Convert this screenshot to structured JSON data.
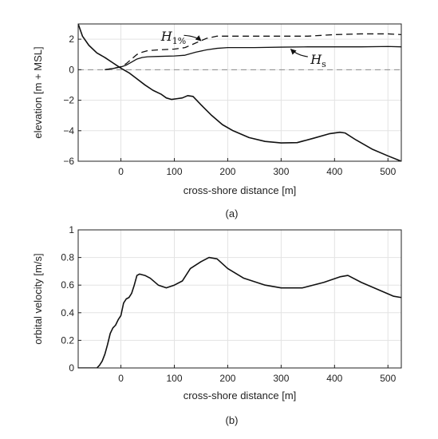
{
  "chart_data": [
    {
      "type": "line",
      "panel_label": "(a)",
      "xlabel": "cross-shore distance [m]",
      "ylabel": "elevation [m + MSL]",
      "xlim": [
        -80,
        525
      ],
      "ylim": [
        -6,
        3
      ],
      "xticks": [
        0,
        100,
        200,
        300,
        400,
        500
      ],
      "yticks": [
        -6,
        -4,
        -2,
        0,
        2
      ],
      "grid": true,
      "series": [
        {
          "name": "bed",
          "style": "solid",
          "x": [
            -80,
            -72,
            -60,
            -45,
            -30,
            -15,
            0,
            15,
            30,
            45,
            60,
            75,
            85,
            95,
            105,
            115,
            125,
            135,
            150,
            170,
            190,
            210,
            240,
            270,
            300,
            330,
            360,
            390,
            410,
            420,
            440,
            470,
            500,
            525
          ],
          "y": [
            3.0,
            2.2,
            1.6,
            1.1,
            0.8,
            0.45,
            0.1,
            -0.2,
            -0.6,
            -1.0,
            -1.35,
            -1.6,
            -1.85,
            -1.95,
            -1.9,
            -1.85,
            -1.7,
            -1.75,
            -2.3,
            -3.0,
            -3.6,
            -4.0,
            -4.45,
            -4.7,
            -4.8,
            -4.78,
            -4.5,
            -4.2,
            -4.1,
            -4.15,
            -4.6,
            -5.2,
            -5.65,
            -6.0
          ]
        },
        {
          "name": "MSL",
          "style": "dashed",
          "x": [
            -80,
            525
          ],
          "y": [
            0,
            0
          ]
        },
        {
          "name": "H_s",
          "style": "solid",
          "x": [
            -30,
            -15,
            0,
            10,
            20,
            30,
            40,
            50,
            70,
            100,
            120,
            140,
            160,
            180,
            200,
            250,
            300,
            350,
            400,
            450,
            500,
            525
          ],
          "y": [
            0.0,
            0.08,
            0.18,
            0.3,
            0.5,
            0.7,
            0.8,
            0.85,
            0.87,
            0.9,
            0.95,
            1.15,
            1.3,
            1.4,
            1.45,
            1.45,
            1.48,
            1.5,
            1.5,
            1.5,
            1.52,
            1.5
          ]
        },
        {
          "name": "H_1%",
          "style": "dashed",
          "x": [
            -30,
            -15,
            0,
            10,
            20,
            30,
            40,
            50,
            70,
            100,
            120,
            140,
            160,
            180,
            200,
            250,
            300,
            350,
            400,
            450,
            500,
            525
          ],
          "y": [
            0.0,
            0.08,
            0.2,
            0.4,
            0.7,
            1.0,
            1.15,
            1.25,
            1.3,
            1.35,
            1.45,
            1.75,
            2.05,
            2.2,
            2.2,
            2.2,
            2.2,
            2.2,
            2.3,
            2.35,
            2.35,
            2.3
          ]
        }
      ],
      "annotations": [
        {
          "base": "H",
          "sub": "1%",
          "at": [
            75,
            2.15
          ]
        },
        {
          "base": "H",
          "sub": "s",
          "at": [
            355,
            0.65
          ]
        }
      ]
    },
    {
      "type": "line",
      "panel_label": "(b)",
      "xlabel": "cross-shore distance [m]",
      "ylabel": "orbital velocity [m/s]",
      "xlim": [
        -80,
        525
      ],
      "ylim": [
        0,
        1
      ],
      "xticks": [
        0,
        100,
        200,
        300,
        400,
        500
      ],
      "yticks": [
        0,
        0.2,
        0.4,
        0.6,
        0.8,
        1
      ],
      "grid": true,
      "series": [
        {
          "name": "orbital velocity",
          "style": "solid",
          "x": [
            -80,
            -45,
            -40,
            -35,
            -30,
            -25,
            -20,
            -15,
            -10,
            -5,
            0,
            5,
            10,
            15,
            20,
            25,
            30,
            35,
            45,
            55,
            70,
            85,
            100,
            115,
            130,
            150,
            165,
            180,
            200,
            230,
            270,
            300,
            340,
            380,
            410,
            425,
            450,
            480,
            510,
            525
          ],
          "y": [
            0.0,
            0.0,
            0.02,
            0.05,
            0.1,
            0.17,
            0.25,
            0.29,
            0.31,
            0.35,
            0.38,
            0.47,
            0.5,
            0.51,
            0.54,
            0.6,
            0.67,
            0.68,
            0.67,
            0.65,
            0.6,
            0.58,
            0.6,
            0.63,
            0.72,
            0.77,
            0.8,
            0.79,
            0.72,
            0.65,
            0.6,
            0.58,
            0.58,
            0.62,
            0.66,
            0.67,
            0.62,
            0.57,
            0.52,
            0.51
          ]
        }
      ]
    }
  ]
}
